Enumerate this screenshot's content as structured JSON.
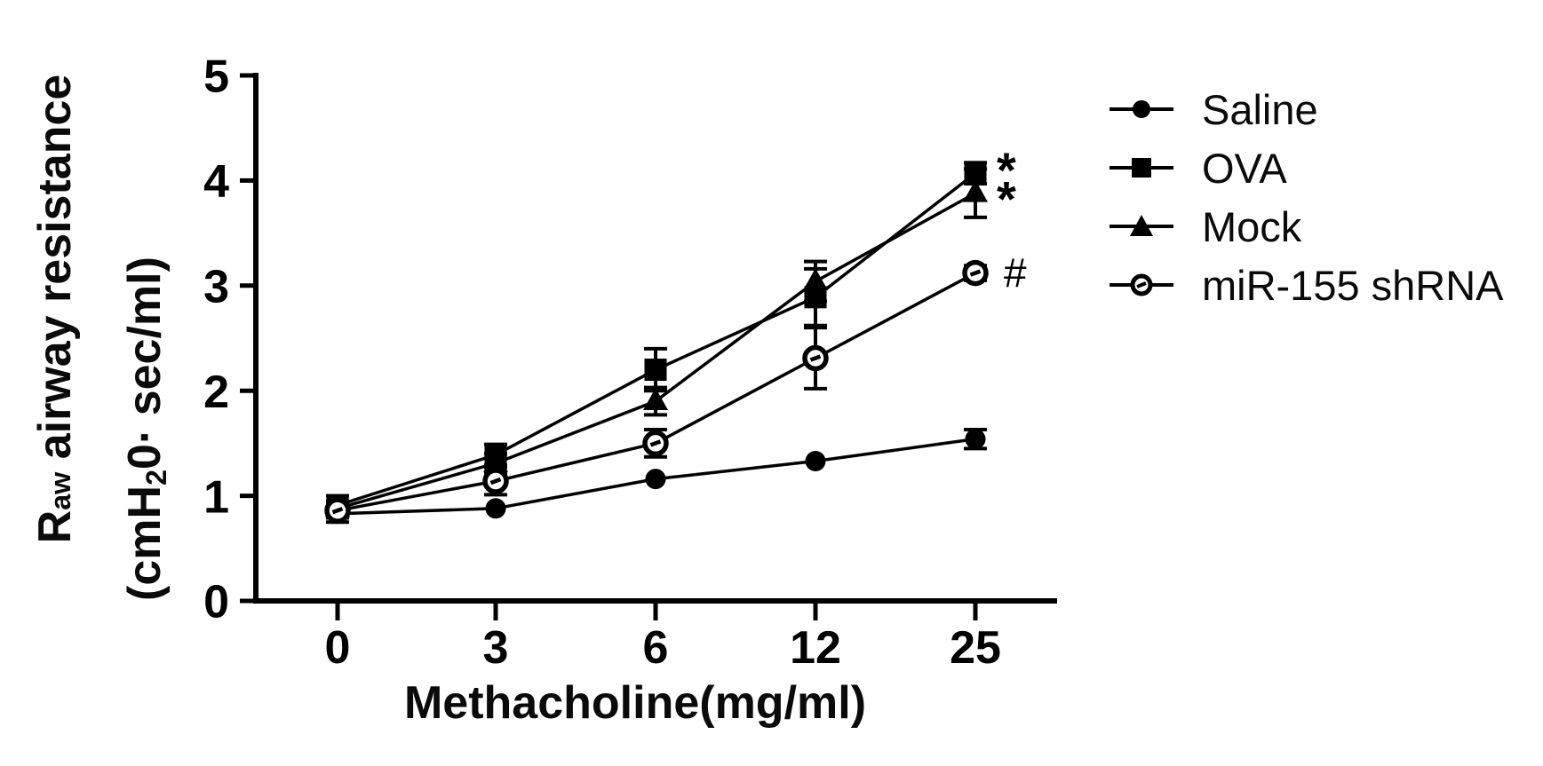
{
  "chart_data": {
    "type": "line",
    "title": "",
    "xlabel": "Methacholine(mg/ml)",
    "ylabel": "Raw airway resistance (cmH20· sec/ml)",
    "ylabel_line1": {
      "pre": "R",
      "sub": "aw",
      "post": " airway resistance"
    },
    "ylabel_line2": {
      "pre": "(cmH",
      "sub": "2",
      "post": "0· sec/ml)"
    },
    "categories": [
      "0",
      "3",
      "6",
      "12",
      "25"
    ],
    "y_ticks": [
      0,
      1,
      2,
      3,
      4,
      5
    ],
    "ylim": [
      0,
      5
    ],
    "grid": false,
    "legend_position": "right",
    "line_color": "#000000",
    "series": [
      {
        "name": "Saline",
        "marker": "circle-filled",
        "values": [
          0.83,
          0.88,
          1.16,
          1.33,
          1.54
        ],
        "errors": [
          0.08,
          0,
          0,
          0,
          0.09
        ]
      },
      {
        "name": "OVA",
        "marker": "square-filled",
        "values": [
          0.91,
          1.39,
          2.2,
          2.89,
          4.07
        ],
        "errors": [
          0.09,
          0.1,
          0.2,
          0.27,
          0.1
        ]
      },
      {
        "name": "Mock",
        "marker": "triangle-filled",
        "values": [
          0.88,
          1.31,
          1.9,
          3.04,
          3.88
        ],
        "errors": [
          0.07,
          0.09,
          0.13,
          0.19,
          0.23
        ]
      },
      {
        "name": "miR-155 shRNA",
        "marker": "circle-open-dash",
        "values": [
          0.86,
          1.14,
          1.5,
          2.31,
          3.12
        ],
        "errors": [
          0.07,
          0.13,
          0.13,
          0.29,
          0.07
        ]
      }
    ],
    "annotations": [
      {
        "text": "*",
        "series": "OVA",
        "x_index": 4,
        "value": 4.07
      },
      {
        "text": "*",
        "series": "Mock",
        "x_index": 4,
        "value": 3.88
      },
      {
        "text": "#",
        "series": "miR-155 shRNA",
        "x_index": 4,
        "value": 3.12
      }
    ]
  }
}
